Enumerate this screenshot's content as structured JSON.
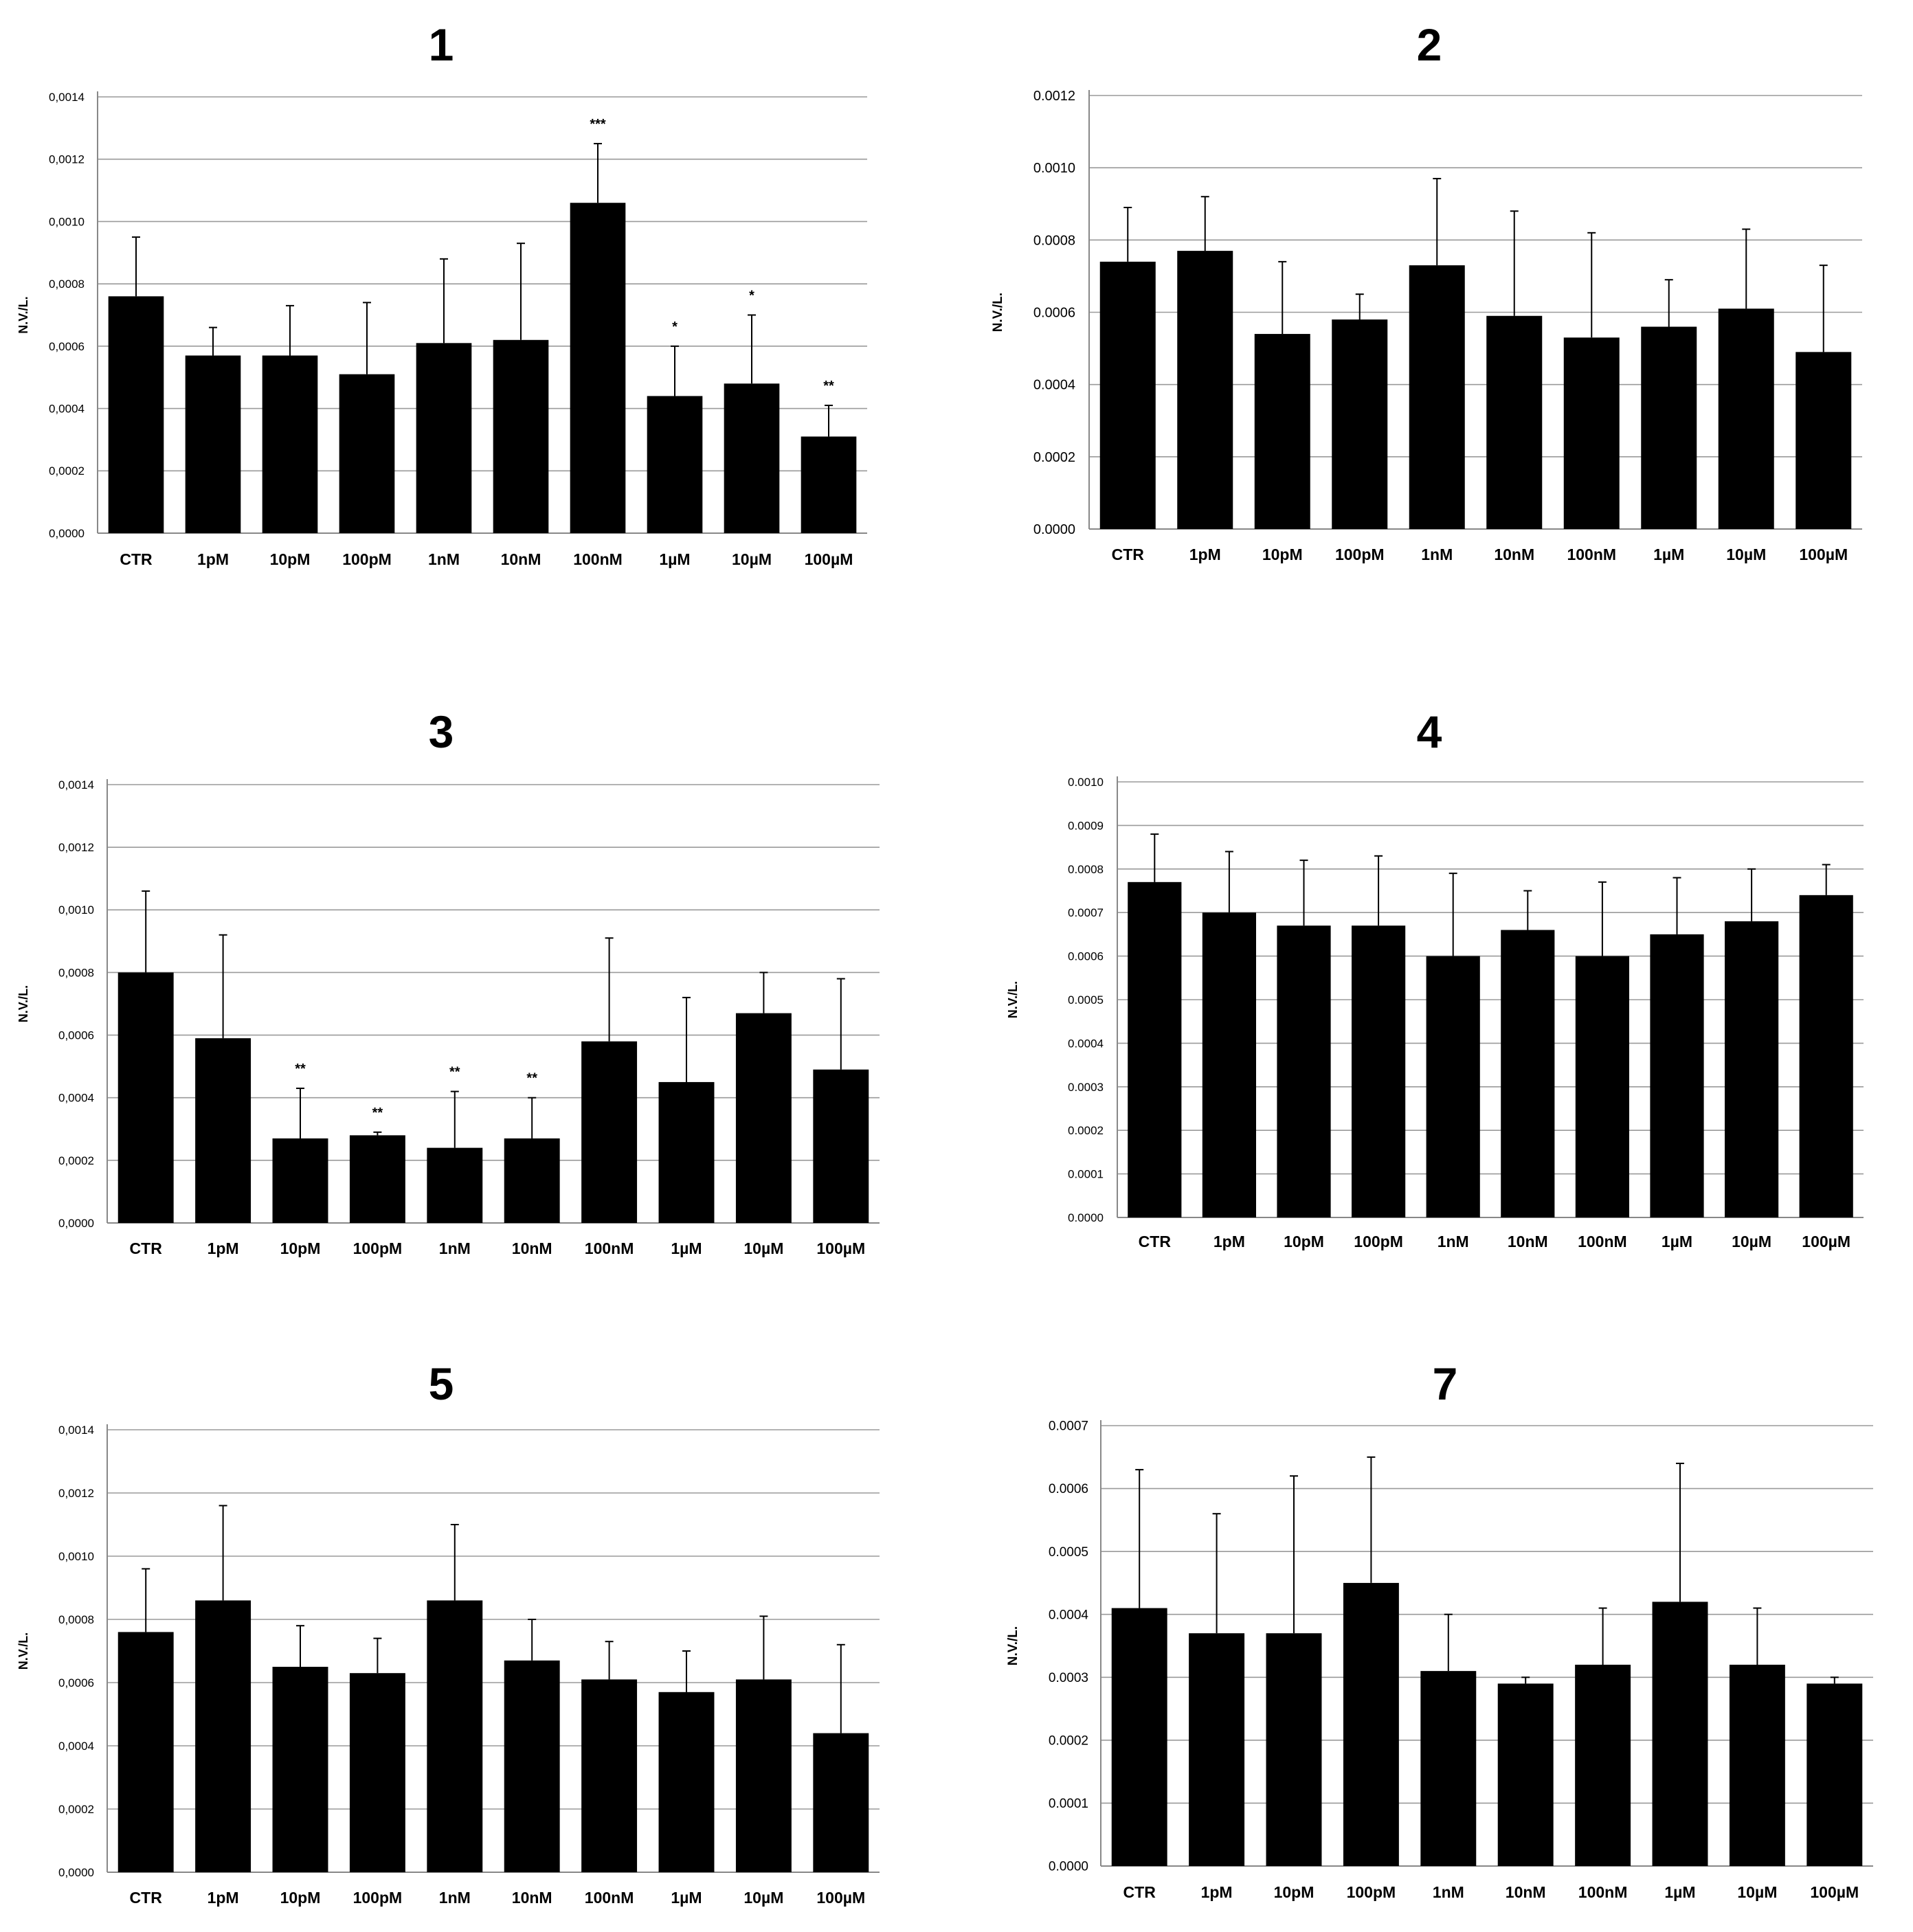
{
  "chart_data": [
    {
      "type": "bar",
      "title": "1",
      "xlabel": "",
      "ylabel": "N.V./L.",
      "decimal": ",",
      "ylim": [
        0,
        0.0014
      ],
      "yticks": [
        0,
        0.0002,
        0.0004,
        0.0006,
        0.0008,
        0.001,
        0.0012,
        0.0014
      ],
      "grid": true,
      "legend": "none",
      "categories": [
        "CTR",
        "1pM",
        "10pM",
        "100pM",
        "1nM",
        "10nM",
        "100nM",
        "1µM",
        "10µM",
        "100µM"
      ],
      "values": [
        0.00076,
        0.00057,
        0.00057,
        0.00051,
        0.00061,
        0.00062,
        0.00106,
        0.00044,
        0.00048,
        0.00031
      ],
      "errors": [
        0.00019,
        9e-05,
        0.00016,
        0.00023,
        0.00027,
        0.00031,
        0.00019,
        0.00016,
        0.00022,
        0.0001
      ],
      "annotations": [
        "",
        "",
        "",
        "",
        "",
        "",
        "***",
        "*",
        "*",
        "**"
      ]
    },
    {
      "type": "bar",
      "title": "2",
      "xlabel": "",
      "ylabel": "N.V./L.",
      "decimal": ".",
      "ylim": [
        0,
        0.0012
      ],
      "yticks": [
        0,
        0.0002,
        0.0004,
        0.0006,
        0.0008,
        0.001,
        0.0012
      ],
      "grid": true,
      "legend": "none",
      "categories": [
        "CTR",
        "1pM",
        "10pM",
        "100pM",
        "1nM",
        "10nM",
        "100nM",
        "1µM",
        "10µM",
        "100µM"
      ],
      "values": [
        0.00074,
        0.00077,
        0.00054,
        0.00058,
        0.00073,
        0.00059,
        0.00053,
        0.00056,
        0.00061,
        0.00049
      ],
      "errors": [
        0.00015,
        0.00015,
        0.0002,
        7e-05,
        0.00024,
        0.00029,
        0.00029,
        0.00013,
        0.00022,
        0.00024
      ],
      "annotations": [
        "",
        "",
        "",
        "",
        "",
        "",
        "",
        "",
        "",
        ""
      ]
    },
    {
      "type": "bar",
      "title": "3",
      "xlabel": "",
      "ylabel": "N.V./L.",
      "decimal": ",",
      "ylim": [
        0,
        0.0014
      ],
      "yticks": [
        0,
        0.0002,
        0.0004,
        0.0006,
        0.0008,
        0.001,
        0.0012,
        0.0014
      ],
      "grid": true,
      "legend": "none",
      "categories": [
        "CTR",
        "1pM",
        "10pM",
        "100pM",
        "1nM",
        "10nM",
        "100nM",
        "1µM",
        "10µM",
        "100µM"
      ],
      "values": [
        0.0008,
        0.00059,
        0.00027,
        0.00028,
        0.00024,
        0.00027,
        0.00058,
        0.00045,
        0.00067,
        0.00049
      ],
      "errors": [
        0.00026,
        0.00033,
        0.00016,
        1e-05,
        0.00018,
        0.00013,
        0.00033,
        0.00027,
        0.00013,
        0.00029
      ],
      "annotations": [
        "",
        "",
        "**",
        "**",
        "**",
        "**",
        "",
        "",
        "",
        ""
      ]
    },
    {
      "type": "bar",
      "title": "4",
      "xlabel": "",
      "ylabel": "N.V./L.",
      "decimal": ".",
      "ylim": [
        0,
        0.001
      ],
      "yticks": [
        0,
        0.0001,
        0.0002,
        0.0003,
        0.0004,
        0.0005,
        0.0006,
        0.0007,
        0.0008,
        0.0009,
        0.001
      ],
      "grid": true,
      "legend": "none",
      "categories": [
        "CTR",
        "1pM",
        "10pM",
        "100pM",
        "1nM",
        "10nM",
        "100nM",
        "1µM",
        "10µM",
        "100µM"
      ],
      "values": [
        0.00077,
        0.0007,
        0.00067,
        0.00067,
        0.0006,
        0.00066,
        0.0006,
        0.00065,
        0.00068,
        0.00074
      ],
      "errors": [
        0.00011,
        0.00014,
        0.00015,
        0.00016,
        0.00019,
        9e-05,
        0.00017,
        0.00013,
        0.00012,
        7e-05
      ],
      "annotations": [
        "",
        "",
        "",
        "",
        "",
        "",
        "",
        "",
        "",
        ""
      ]
    },
    {
      "type": "bar",
      "title": "5",
      "xlabel": "",
      "ylabel": "N.V./L.",
      "decimal": ",",
      "ylim": [
        0,
        0.0014
      ],
      "yticks": [
        0,
        0.0002,
        0.0004,
        0.0006,
        0.0008,
        0.001,
        0.0012,
        0.0014
      ],
      "grid": true,
      "legend": "none",
      "categories": [
        "CTR",
        "1pM",
        "10pM",
        "100pM",
        "1nM",
        "10nM",
        "100nM",
        "1µM",
        "10µM",
        "100µM"
      ],
      "values": [
        0.00076,
        0.00086,
        0.00065,
        0.00063,
        0.00086,
        0.00067,
        0.00061,
        0.00057,
        0.00061,
        0.00044
      ],
      "errors": [
        0.0002,
        0.0003,
        0.00013,
        0.00011,
        0.00024,
        0.00013,
        0.00012,
        0.00013,
        0.0002,
        0.00028
      ],
      "annotations": [
        "",
        "",
        "",
        "",
        "",
        "",
        "",
        "",
        "",
        ""
      ]
    },
    {
      "type": "bar",
      "title": "7",
      "xlabel": "",
      "ylabel": "N.V./L.",
      "decimal": ".",
      "ylim": [
        0,
        0.0007
      ],
      "yticks": [
        0,
        0.0001,
        0.0002,
        0.0003,
        0.0004,
        0.0005,
        0.0006,
        0.0007
      ],
      "grid": true,
      "legend": "none",
      "categories": [
        "CTR",
        "1pM",
        "10pM",
        "100pM",
        "1nM",
        "10nM",
        "100nM",
        "1µM",
        "10µM",
        "100µM"
      ],
      "values": [
        0.00041,
        0.00037,
        0.00037,
        0.00045,
        0.00031,
        0.00029,
        0.00032,
        0.00042,
        0.00032,
        0.00029
      ],
      "errors": [
        0.00022,
        0.00019,
        0.00025,
        0.0002,
        9e-05,
        1e-05,
        9e-05,
        0.00022,
        9e-05,
        1e-05
      ],
      "annotations": [
        "",
        "",
        "",
        "",
        "",
        "",
        "",
        "",
        "",
        ""
      ]
    }
  ]
}
